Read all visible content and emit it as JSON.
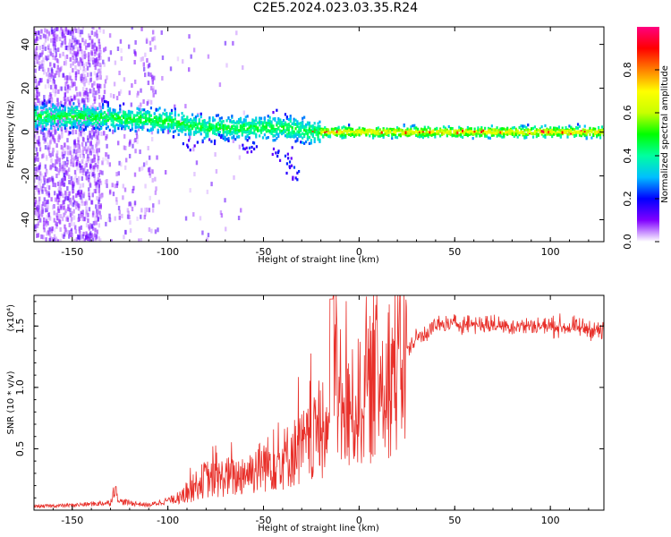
{
  "title": "C2E5.2024.023.03.35.R24",
  "colors": {
    "snr_line": "#e8302a",
    "frame": "#000000"
  },
  "chart_data": [
    {
      "type": "heatmap",
      "name": "spectrogram",
      "xlabel": "Height of straight line (km)",
      "ylabel": "Frequency (Hz)",
      "xlim": [
        -170,
        128
      ],
      "ylim": [
        -50,
        48
      ],
      "xticks": [
        "-150",
        "-100",
        "-50",
        "0",
        "50",
        "100"
      ],
      "yticks": [
        "40",
        "20",
        "0",
        "-20",
        "-40"
      ],
      "colorbar": {
        "label": "Normalized spectral amplitude",
        "range": [
          0,
          1
        ],
        "ticks": [
          "0.0",
          "0.2",
          "0.4",
          "0.6",
          "0.8"
        ],
        "colormap": "rainbow (white-violet-blue-cyan-green-yellow-orange-red-magenta)"
      },
      "ridge_center_hz": [
        {
          "x": -165,
          "f": 7
        },
        {
          "x": -140,
          "f": 7
        },
        {
          "x": -120,
          "f": 6
        },
        {
          "x": -100,
          "f": 5
        },
        {
          "x": -80,
          "f": 2
        },
        {
          "x": -60,
          "f": 2
        },
        {
          "x": -40,
          "f": 2
        },
        {
          "x": -25,
          "f": 0
        },
        {
          "x": 0,
          "f": 0
        },
        {
          "x": 50,
          "f": 0
        },
        {
          "x": 128,
          "f": 0
        }
      ]
    },
    {
      "type": "line",
      "name": "snr",
      "xlabel": "Height of straight line (km)",
      "ylabel": "SNR (10 * v/v)",
      "multiplier": "(x10⁴)",
      "xlim": [
        -170,
        128
      ],
      "ylim": [
        0,
        1.75
      ],
      "xticks": [
        "-150",
        "-100",
        "-50",
        "0",
        "50",
        "100"
      ],
      "yticks": [
        "0.5",
        "1.0",
        "1.5"
      ],
      "series": [
        {
          "x": [
            -170,
            -150,
            -130,
            -128,
            -125,
            -110,
            -100,
            -95,
            -90,
            -85,
            -80,
            -75,
            -70,
            -65,
            -60,
            -55,
            -50,
            -45,
            -40,
            -35,
            -30,
            -25,
            -22,
            -20,
            -15,
            -14,
            -10,
            -5,
            0,
            5,
            10,
            15,
            20,
            25,
            30,
            35,
            40,
            50,
            60,
            80,
            100,
            120,
            128
          ],
          "y": [
            0.03,
            0.04,
            0.06,
            0.18,
            0.07,
            0.04,
            0.08,
            0.09,
            0.15,
            0.22,
            0.28,
            0.26,
            0.3,
            0.28,
            0.33,
            0.35,
            0.4,
            0.42,
            0.45,
            0.5,
            0.55,
            0.58,
            0.65,
            0.65,
            0.7,
            1.72,
            0.8,
            0.85,
            0.95,
            1.05,
            1.15,
            1.2,
            1.25,
            1.3,
            1.4,
            1.45,
            1.5,
            1.52,
            1.52,
            1.5,
            1.5,
            1.48,
            1.45
          ]
        }
      ]
    }
  ]
}
